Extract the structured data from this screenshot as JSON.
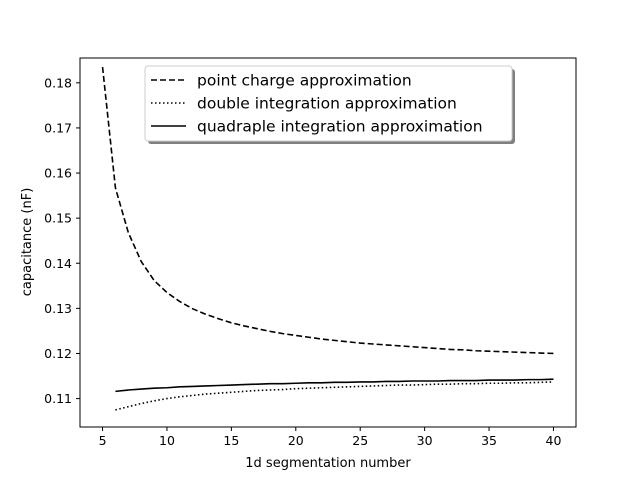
{
  "chart_data": {
    "type": "line",
    "title": "",
    "xlabel": "1d segmentation number",
    "ylabel": "capacitance (nF)",
    "xlim": [
      3.25,
      41.75
    ],
    "ylim": [
      0.1037,
      0.1855
    ],
    "xticks": [
      5,
      10,
      15,
      20,
      25,
      30,
      35,
      40
    ],
    "xtick_labels": [
      "5",
      "10",
      "15",
      "20",
      "25",
      "30",
      "35",
      "40"
    ],
    "yticks": [
      0.11,
      0.12,
      0.13,
      0.14,
      0.15,
      0.16,
      0.17,
      0.18
    ],
    "ytick_labels": [
      "0.11",
      "0.12",
      "0.13",
      "0.14",
      "0.15",
      "0.16",
      "0.17",
      "0.18"
    ],
    "grid": false,
    "legend_position": "top-center",
    "series": [
      {
        "name": "point charge approximation",
        "style": "dashed",
        "color": "#000000",
        "x": [
          5,
          6,
          7,
          8,
          9,
          10,
          11,
          12,
          13,
          14,
          15,
          16,
          17,
          18,
          19,
          20,
          21,
          22,
          23,
          24,
          25,
          26,
          27,
          28,
          29,
          30,
          31,
          32,
          33,
          34,
          35,
          36,
          37,
          38,
          39,
          40
        ],
        "y": [
          0.1835,
          0.1567,
          0.1468,
          0.1404,
          0.1362,
          0.1335,
          0.1315,
          0.1299,
          0.1287,
          0.1277,
          0.1268,
          0.1261,
          0.1255,
          0.1249,
          0.1244,
          0.124,
          0.1236,
          0.1232,
          0.1229,
          0.1226,
          0.1223,
          0.1221,
          0.1219,
          0.1217,
          0.1215,
          0.1213,
          0.1211,
          0.1209,
          0.1208,
          0.1206,
          0.1205,
          0.1204,
          0.1203,
          0.1202,
          0.1201,
          0.12
        ]
      },
      {
        "name": "double integration approximation",
        "style": "dotted",
        "color": "#000000",
        "x": [
          6,
          7,
          8,
          9,
          10,
          11,
          12,
          13,
          14,
          15,
          16,
          17,
          18,
          19,
          20,
          21,
          22,
          23,
          24,
          25,
          26,
          27,
          28,
          29,
          30,
          31,
          32,
          33,
          34,
          35,
          36,
          37,
          38,
          39,
          40
        ],
        "y": [
          0.1075,
          0.1082,
          0.1089,
          0.1095,
          0.11,
          0.1104,
          0.1107,
          0.111,
          0.1112,
          0.1114,
          0.1116,
          0.1118,
          0.1119,
          0.112,
          0.1122,
          0.1123,
          0.1124,
          0.1125,
          0.1126,
          0.1127,
          0.1128,
          0.1129,
          0.113,
          0.113,
          0.1131,
          0.1132,
          0.1132,
          0.1133,
          0.1133,
          0.1134,
          0.1134,
          0.1135,
          0.1135,
          0.1136,
          0.1137
        ]
      },
      {
        "name": "quadraple integration approximation",
        "style": "solid",
        "color": "#000000",
        "x": [
          6,
          7,
          8,
          9,
          10,
          11,
          12,
          13,
          14,
          15,
          16,
          17,
          18,
          19,
          20,
          21,
          22,
          23,
          24,
          25,
          26,
          27,
          28,
          29,
          30,
          31,
          32,
          33,
          34,
          35,
          36,
          37,
          38,
          39,
          40
        ],
        "y": [
          0.1116,
          0.1119,
          0.1121,
          0.1123,
          0.1124,
          0.1126,
          0.1127,
          0.1128,
          0.1129,
          0.113,
          0.1131,
          0.1132,
          0.1133,
          0.1133,
          0.1134,
          0.1135,
          0.1135,
          0.1136,
          0.1136,
          0.1137,
          0.1137,
          0.1138,
          0.1138,
          0.1139,
          0.1139,
          0.1139,
          0.114,
          0.114,
          0.114,
          0.1141,
          0.1141,
          0.1141,
          0.1142,
          0.1142,
          0.1143
        ]
      }
    ]
  }
}
